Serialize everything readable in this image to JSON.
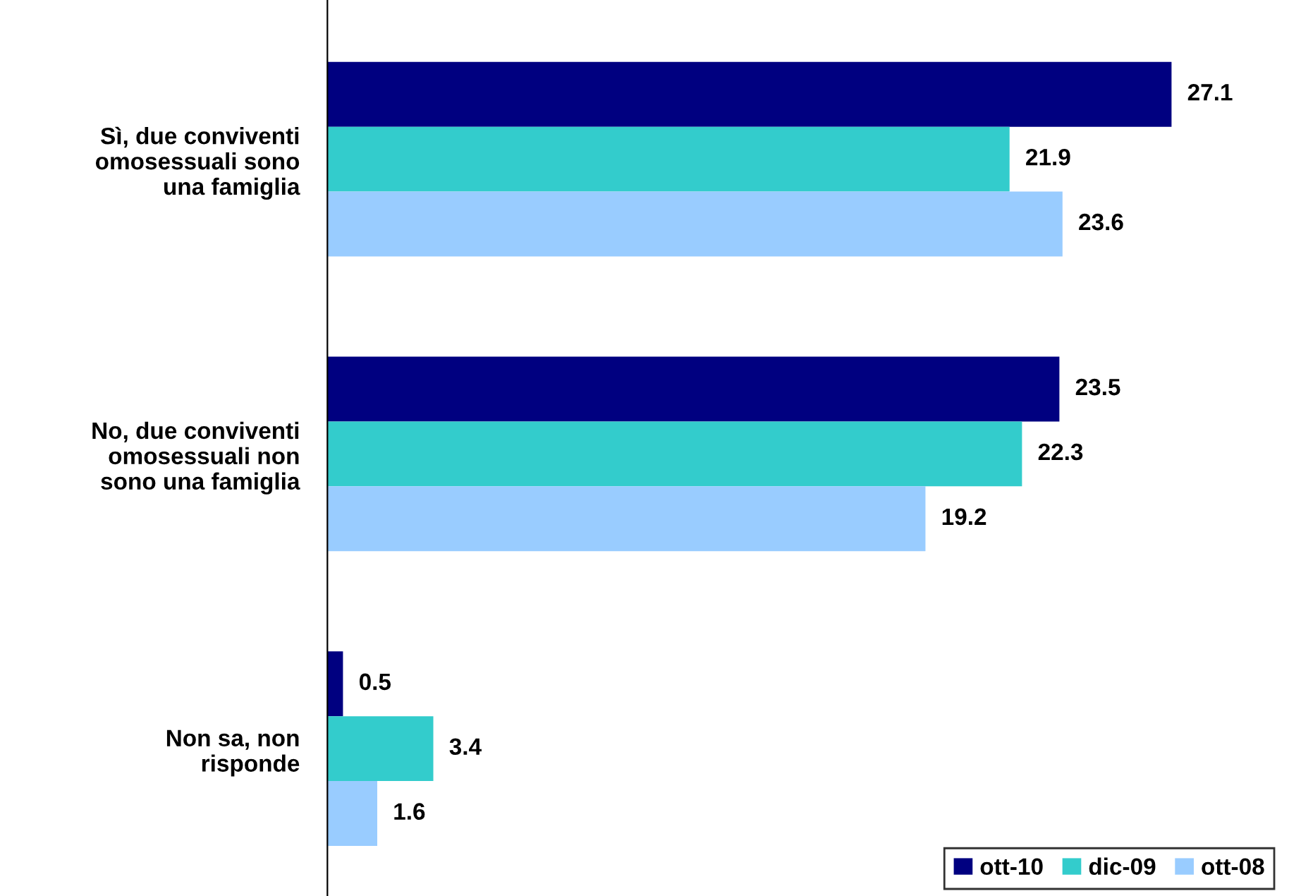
{
  "chart_data": {
    "type": "bar",
    "orientation": "horizontal",
    "categories": [
      "Sì, due conviventi\nomosessuali sono\nuna famiglia",
      "No, due conviventi\nomosessuali non\nsono una famiglia",
      "Non sa, non\nrisponde"
    ],
    "series": [
      {
        "name": "ott-10",
        "color": "#000080",
        "values": [
          27.1,
          23.5,
          0.5
        ]
      },
      {
        "name": "dic-09",
        "color": "#33cccc",
        "values": [
          21.9,
          22.3,
          3.4
        ]
      },
      {
        "name": "ott-08",
        "color": "#99ccff",
        "values": [
          23.6,
          19.2,
          1.6
        ]
      }
    ],
    "data_labels": true,
    "grid": false,
    "legend": "bottom right"
  }
}
